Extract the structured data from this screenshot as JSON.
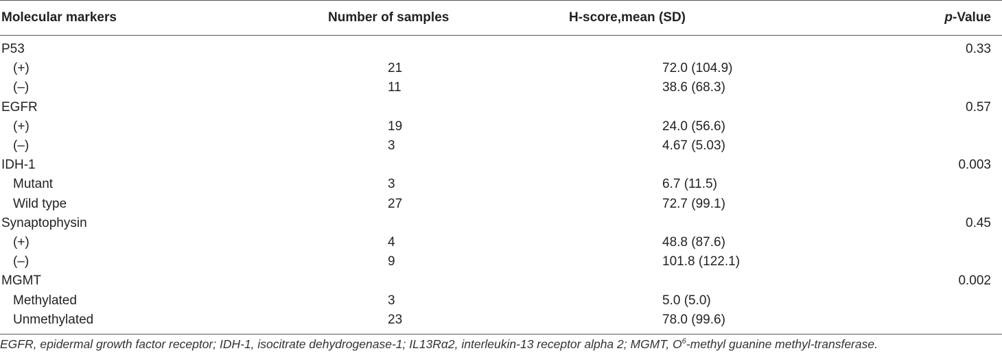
{
  "table": {
    "headers": {
      "col1": "Molecular markers",
      "col2": "Number of samples",
      "col3": "H-score,mean (SD)",
      "col4_italic": "p",
      "col4_rest": "-Value"
    },
    "rows": [
      {
        "marker": "P53",
        "n": "",
        "h": "",
        "p": "0.33"
      },
      {
        "marker": "(+)",
        "n": "21",
        "h": "72.0 (104.9)",
        "p": ""
      },
      {
        "marker": "(–)",
        "n": "11",
        "h": "38.6 (68.3)",
        "p": ""
      },
      {
        "marker": "EGFR",
        "n": "",
        "h": "",
        "p": "0.57"
      },
      {
        "marker": "(+)",
        "n": "19",
        "h": "24.0 (56.6)",
        "p": ""
      },
      {
        "marker": "(–)",
        "n": "3",
        "h": "4.67 (5.03)",
        "p": ""
      },
      {
        "marker": "IDH-1",
        "n": "",
        "h": "",
        "p": "0.003"
      },
      {
        "marker": "Mutant",
        "n": "3",
        "h": "6.7 (11.5)",
        "p": ""
      },
      {
        "marker": "Wild type",
        "n": "27",
        "h": "72.7 (99.1)",
        "p": ""
      },
      {
        "marker": "Synaptophysin",
        "n": "",
        "h": "",
        "p": "0.45"
      },
      {
        "marker": "(+)",
        "n": "4",
        "h": "48.8 (87.6)",
        "p": ""
      },
      {
        "marker": "(–)",
        "n": "9",
        "h": "101.8 (122.1)",
        "p": ""
      },
      {
        "marker": "MGMT",
        "n": "",
        "h": "",
        "p": "0.002"
      },
      {
        "marker": "Methylated",
        "n": "3",
        "h": "5.0 (5.0)",
        "p": ""
      },
      {
        "marker": "Unmethylated",
        "n": "23",
        "h": "78.0 (99.6)",
        "p": ""
      }
    ]
  },
  "footnote": {
    "before_sup": "EGFR, epidermal growth factor receptor; IDH-1, isocitrate dehydrogenase-1; IL13Rα2, interleukin-13 receptor alpha 2; MGMT, O",
    "sup": "6",
    "after_sup": "-methyl guanine methyl-transferase."
  }
}
